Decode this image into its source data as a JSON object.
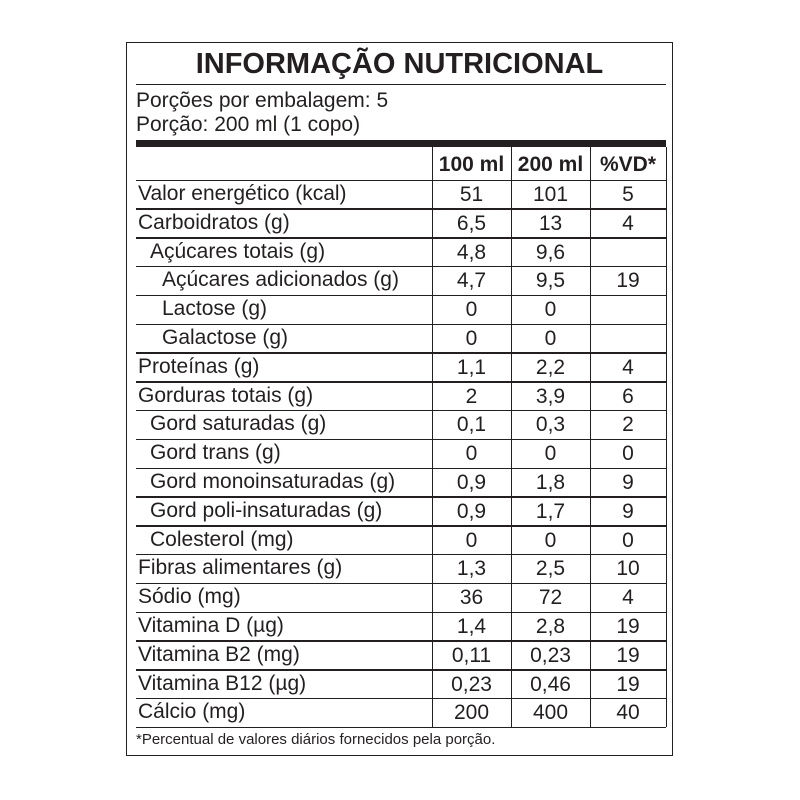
{
  "title": "INFORMAÇÃO NUTRICIONAL",
  "portions": [
    "Porções por embalagem: 5",
    "Porção: 200 ml (1 copo)"
  ],
  "columns": [
    "100 ml",
    "200 ml",
    "%VD*"
  ],
  "rows": [
    {
      "label": "Valor energético (kcal)",
      "level": 0,
      "cells": [
        "51",
        "101",
        "5"
      ]
    },
    {
      "label": "Carboidratos (g)",
      "level": 0,
      "cells": [
        "6,5",
        "13",
        "4"
      ]
    },
    {
      "label": "Açúcares totais (g)",
      "level": 1,
      "cells": [
        "4,8",
        "9,6"
      ]
    },
    {
      "label": "Açúcares adicionados (g)",
      "level": 2,
      "cells": [
        "4,7",
        "9,5",
        "19"
      ]
    },
    {
      "label": "Lactose (g)",
      "level": 2,
      "cells": [
        "0",
        "0"
      ]
    },
    {
      "label": "Galactose (g)",
      "level": 2,
      "cells": [
        "0",
        "0"
      ]
    },
    {
      "label": "Proteínas (g)",
      "level": 0,
      "cells": [
        "1,1",
        "2,2",
        "4"
      ]
    },
    {
      "label": "Gorduras totais (g)",
      "level": 0,
      "cells": [
        "2",
        "3,9",
        "6"
      ]
    },
    {
      "label": "Gord saturadas (g)",
      "level": 1,
      "cells": [
        "0,1",
        "0,3",
        "2"
      ]
    },
    {
      "label": "Gord trans (g)",
      "level": 1,
      "cells": [
        "0",
        "0",
        "0"
      ]
    },
    {
      "label": "Gord monoinsaturadas (g)",
      "level": 1,
      "cells": [
        "0,9",
        "1,8",
        "9"
      ]
    },
    {
      "label": "Gord poli-insaturadas (g)",
      "level": 1,
      "cells": [
        "0,9",
        "1,7",
        "9"
      ]
    },
    {
      "label": "Colesterol (mg)",
      "level": 1,
      "cells": [
        "0",
        "0",
        "0"
      ]
    },
    {
      "label": "Fibras alimentares (g)",
      "level": 0,
      "cells": [
        "1,3",
        "2,5",
        "10"
      ]
    },
    {
      "label": "Sódio (mg)",
      "level": 0,
      "cells": [
        "36",
        "72",
        "4"
      ]
    },
    {
      "label": "Vitamina D (µg)",
      "level": 0,
      "cells": [
        "1,4",
        "2,8",
        "19"
      ]
    },
    {
      "label": "Vitamina B2 (mg)",
      "level": 0,
      "cells": [
        "0,11",
        "0,23",
        "19"
      ]
    },
    {
      "label": "Vitamina B12 (µg)",
      "level": 0,
      "cells": [
        "0,23",
        "0,46",
        "19"
      ]
    },
    {
      "label": "Cálcio (mg)",
      "level": 0,
      "cells": [
        "200",
        "400",
        "40"
      ]
    }
  ],
  "footnote": "*Percentual de valores diários fornecidos pela porção."
}
